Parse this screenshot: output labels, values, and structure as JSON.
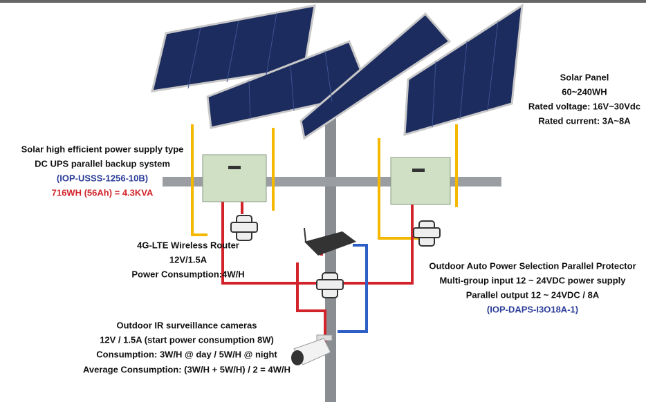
{
  "solar_panel": {
    "lines": [
      "Solar Panel",
      "60~240WH",
      "Rated voltage: 16V~30Vdc",
      "Rated current: 3A~8A"
    ]
  },
  "ups": {
    "lines": [
      "Solar high efficient power supply type",
      "DC UPS parallel backup system",
      "(IOP-USSS-1256-10B)",
      "716WH (56Ah) = 4.3KVA"
    ]
  },
  "router": {
    "lines": [
      "4G-LTE Wireless Router",
      "12V/1.5A",
      "Power Consumption:4W/H"
    ]
  },
  "protector": {
    "lines": [
      "Outdoor Auto Power Selection Parallel Protector",
      "Multi-group input 12 ~ 24VDC power supply",
      "Parallel output 12 ~ 24VDC / 8A",
      "(IOP-DAPS-I3O18A-1)"
    ]
  },
  "camera": {
    "lines": [
      "Outdoor IR surveillance cameras",
      "12V / 1.5A (start power consumption 8W)",
      "Consumption: 3W/H @ day / 5W/H @ night",
      "Average Consumption: (3W/H + 5W/H) / 2 = 4W/H"
    ]
  }
}
